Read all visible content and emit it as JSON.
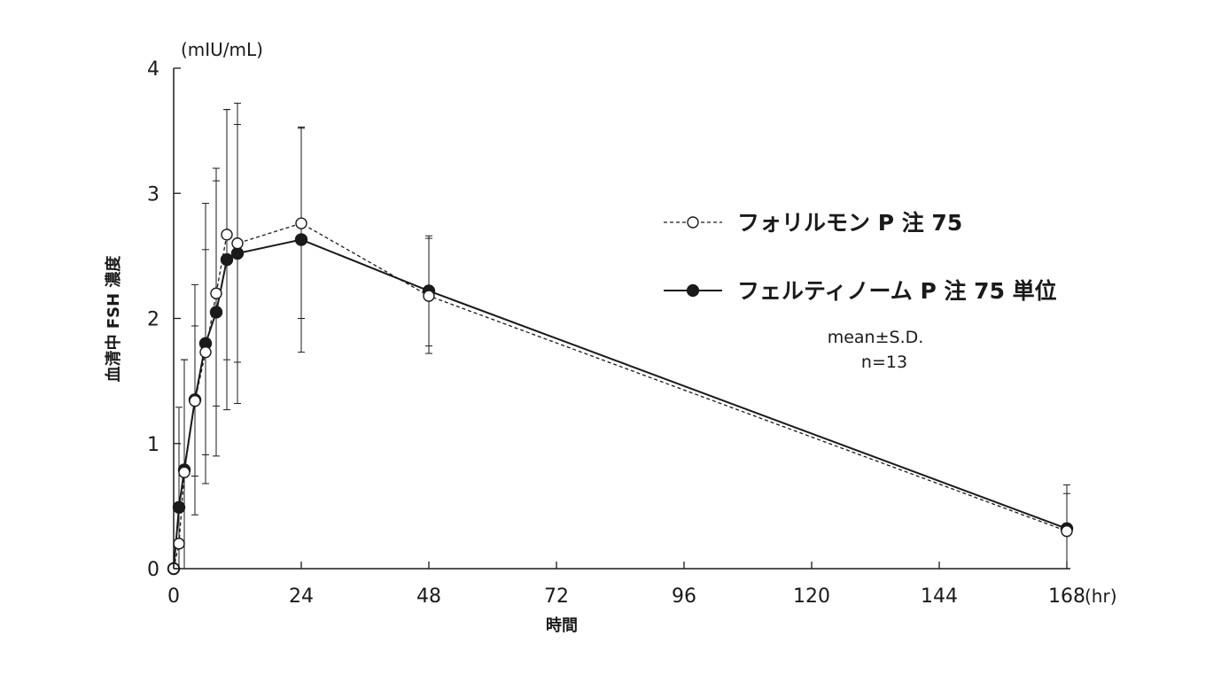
{
  "chart_data": {
    "type": "line",
    "x": [
      0,
      1,
      2,
      4,
      6,
      8,
      10,
      12,
      24,
      48,
      168
    ],
    "x_ticks": [
      "0",
      "24",
      "48",
      "72",
      "96",
      "120",
      "144",
      "168"
    ],
    "y_ticks": [
      "0",
      "1",
      "2",
      "3",
      "4"
    ],
    "xlim": [
      0,
      168
    ],
    "ylim": [
      0,
      4
    ],
    "xlabel": "時間",
    "ylabel": "血清中 FSH 濃度",
    "x_unit": "(hr)",
    "y_unit": "(mIU/mL)",
    "grid": false,
    "legend_position": "right-center",
    "annotation_lines": [
      "mean±S.D.",
      "n=13"
    ],
    "series": [
      {
        "name": "フォリルモン P 注 75",
        "marker": "open-circle",
        "line_style": "dashed",
        "color": "#1a1a1a",
        "values": [
          0.0,
          0.2,
          0.77,
          1.34,
          1.73,
          2.2,
          2.67,
          2.6,
          2.76,
          2.18,
          0.3
        ],
        "sd": [
          0.0,
          0.27,
          0.9,
          0.6,
          0.82,
          0.9,
          1.0,
          0.95,
          0.76,
          0.46,
          0.3
        ]
      },
      {
        "name": "フェルティノーム P 注 75 単位",
        "marker": "filled-circle",
        "line_style": "solid",
        "color": "#1a1a1a",
        "values": [
          0.0,
          0.49,
          0.79,
          1.35,
          1.8,
          2.05,
          2.47,
          2.52,
          2.63,
          2.22,
          0.32
        ],
        "sd": [
          0.0,
          0.8,
          0.88,
          0.92,
          1.12,
          1.15,
          1.2,
          1.2,
          0.9,
          0.44,
          0.35
        ]
      }
    ]
  }
}
